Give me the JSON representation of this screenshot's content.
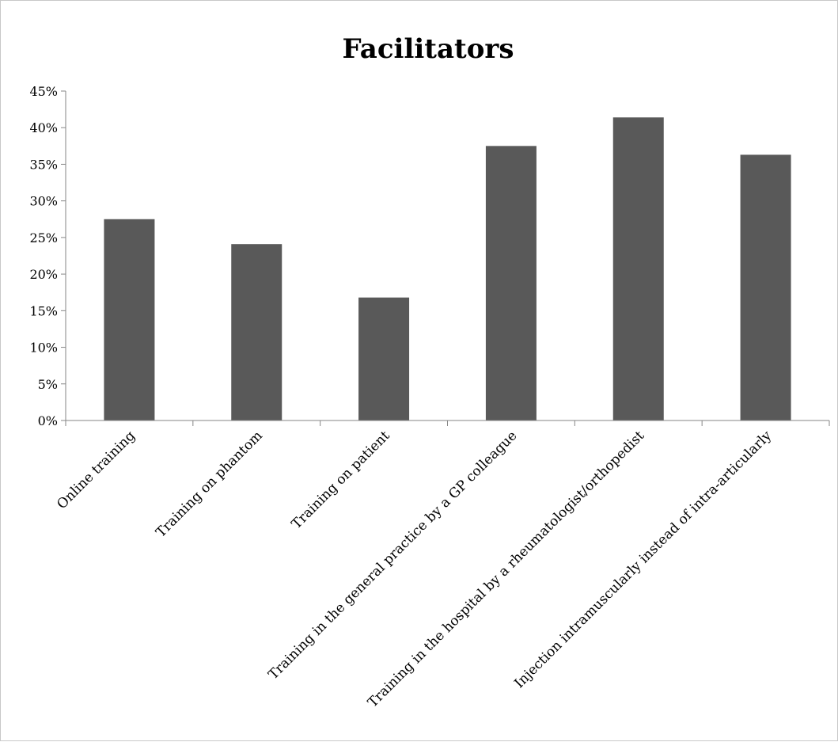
{
  "chart_data": {
    "type": "bar",
    "title": "Facilitators",
    "xlabel": "",
    "ylabel": "",
    "categories": [
      "Online training",
      "Training on phantom",
      "Training on patient",
      "Training in the general practice by a GP colleague",
      "Training in the hospital by a rheumatologist/orthopedist",
      "Injection intramuscularly instead of intra-articularly"
    ],
    "values": [
      27.5,
      24.1,
      16.8,
      37.5,
      41.4,
      36.3
    ],
    "value_unit": "%",
    "ylim": [
      0,
      45
    ],
    "yticks": [
      0,
      5,
      10,
      15,
      20,
      25,
      30,
      35,
      40,
      45
    ],
    "ytick_labels": [
      "0%",
      "5%",
      "10%",
      "15%",
      "20%",
      "25%",
      "30%",
      "35%",
      "40%",
      "45%"
    ],
    "grid": false,
    "legend": "none",
    "colors": {
      "bar": "#595959",
      "axis": "#868686",
      "text": "#000000"
    }
  }
}
